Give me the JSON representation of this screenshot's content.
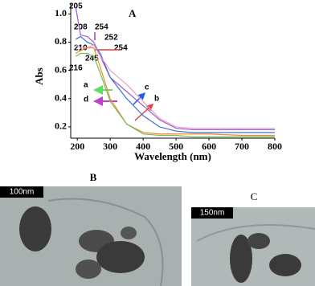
{
  "chart_data": {
    "type": "line",
    "title": "A",
    "xlabel": "Wavelength (nm)",
    "ylabel": "Abs",
    "x": [
      195,
      210,
      230,
      250,
      270,
      300,
      350,
      400,
      450,
      500,
      550,
      600,
      700,
      800
    ],
    "series": [
      {
        "color": "#9b59d0",
        "values": [
          1.05,
          0.85,
          0.84,
          0.8,
          0.7,
          0.55,
          0.45,
          0.35,
          0.25,
          0.19,
          0.18,
          0.18,
          0.18,
          0.18
        ]
      },
      {
        "color": "#3d6fd8",
        "values": [
          0.82,
          0.84,
          0.8,
          0.78,
          0.72,
          0.55,
          0.4,
          0.28,
          0.2,
          0.17,
          0.16,
          0.16,
          0.16,
          0.16
        ]
      },
      {
        "color": "#e8a0c8",
        "values": [
          0.78,
          0.76,
          0.76,
          0.78,
          0.7,
          0.6,
          0.5,
          0.38,
          0.26,
          0.2,
          0.19,
          0.19,
          0.19,
          0.19
        ]
      },
      {
        "color": "#f08a30",
        "values": [
          0.72,
          0.74,
          0.76,
          0.76,
          0.62,
          0.4,
          0.22,
          0.16,
          0.15,
          0.15,
          0.15,
          0.15,
          0.14,
          0.14
        ]
      },
      {
        "color": "#70c060",
        "values": [
          0.7,
          0.72,
          0.72,
          0.7,
          0.58,
          0.38,
          0.22,
          0.15,
          0.14,
          0.14,
          0.13,
          0.13,
          0.13,
          0.13
        ]
      }
    ],
    "xlim": [
      180,
      800
    ],
    "ylim": [
      0.12,
      1.07
    ],
    "xticks": [
      200,
      300,
      400,
      500,
      600,
      700,
      800
    ],
    "yticks": [
      {
        "value": 0.2,
        "label": "0.2"
      },
      {
        "value": 0.4,
        "label": "0.4"
      },
      {
        "value": 0.6,
        "label": "0.6"
      },
      {
        "value": 0.8,
        "label": "0.8"
      },
      {
        "value": 1.0,
        "label": "1.0"
      }
    ],
    "annotations": [
      "205",
      "208",
      "254",
      "252",
      "210",
      "254",
      "245",
      "216",
      "a",
      "c",
      "d",
      "b"
    ]
  },
  "images": [
    {
      "label": "B",
      "scale": "100nm"
    },
    {
      "label": "C",
      "scale": "150nm"
    }
  ]
}
